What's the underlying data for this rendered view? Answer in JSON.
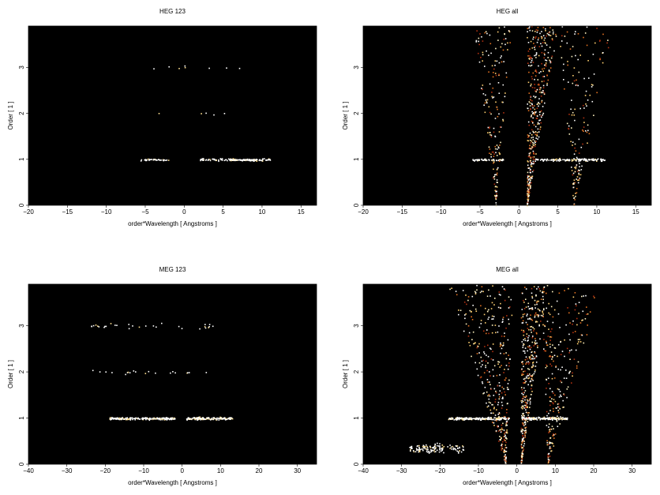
{
  "chart_data": [
    {
      "type": "heatmap",
      "title": "HEG 123",
      "xlabel": "order*Wavelength [ Angstroms ]",
      "ylabel": "Order [ 1 ]",
      "xlim": [
        -20,
        17
      ],
      "ylim": [
        0,
        3.9
      ],
      "xticks": [
        -20,
        -15,
        -10,
        -5,
        0,
        5,
        10,
        15
      ],
      "yticks": [
        0,
        1,
        2,
        3
      ],
      "background": "#000000",
      "clusters": [
        {
          "x": [
            -6,
            -2
          ],
          "y": 1,
          "spread": 0.03,
          "n": 40
        },
        {
          "x": [
            2,
            11
          ],
          "y": 1,
          "spread": 0.04,
          "n": 110
        },
        {
          "x": [
            6,
            9
          ],
          "y": 1,
          "spread": 0.02,
          "n": 60
        },
        {
          "x": [
            -4,
            10
          ],
          "y": 3.0,
          "spread": 0.05,
          "n": 8
        },
        {
          "x": [
            -4,
            10
          ],
          "y": 2.0,
          "spread": 0.04,
          "n": 5
        }
      ]
    },
    {
      "type": "heatmap",
      "title": "HEG all",
      "xlabel": "order*Wavelength [ Angstroms ]",
      "ylabel": "Order [ 1 ]",
      "xlim": [
        -20,
        17
      ],
      "ylim": [
        0,
        3.9
      ],
      "xticks": [
        -20,
        -15,
        -10,
        -5,
        0,
        5,
        10,
        15
      ],
      "yticks": [
        0,
        1,
        2,
        3
      ],
      "background": "#000000",
      "clusters": [
        {
          "x": [
            -6,
            -2
          ],
          "y": 1,
          "spread": 0.03,
          "n": 50
        },
        {
          "x": [
            2,
            11
          ],
          "y": 1,
          "spread": 0.04,
          "n": 130
        },
        {
          "wedge": true,
          "apex": 1,
          "left": 1,
          "right": 5,
          "n": 420
        },
        {
          "wedge": true,
          "apex": -3,
          "left": -6,
          "right": -1,
          "n": 180
        },
        {
          "wedge": true,
          "apex": 7,
          "left": 5,
          "right": 12,
          "n": 160
        }
      ]
    },
    {
      "type": "heatmap",
      "title": "MEG 123",
      "xlabel": "order*Wavelength [ Angstroms ]",
      "ylabel": "Order [ 1 ]",
      "xlim": [
        -40,
        35
      ],
      "ylim": [
        0,
        3.9
      ],
      "xticks": [
        -40,
        -30,
        -20,
        -10,
        0,
        10,
        20,
        30
      ],
      "yticks": [
        0,
        1,
        2,
        3
      ],
      "background": "#000000",
      "clusters": [
        {
          "x": [
            -19,
            -2
          ],
          "y": 1,
          "spread": 0.04,
          "n": 200
        },
        {
          "x": [
            1,
            13
          ],
          "y": 1,
          "spread": 0.04,
          "n": 150
        },
        {
          "x": [
            -24,
            8
          ],
          "y": 3.0,
          "spread": 0.08,
          "n": 30
        },
        {
          "x": [
            -24,
            7
          ],
          "y": 2.0,
          "spread": 0.06,
          "n": 20
        }
      ]
    },
    {
      "type": "heatmap",
      "title": "MEG all",
      "xlabel": "order*Wavelength [ Angstroms ]",
      "ylabel": "Order [ 1 ]",
      "xlim": [
        -40,
        35
      ],
      "ylim": [
        0,
        3.9
      ],
      "xticks": [
        -40,
        -30,
        -20,
        -10,
        0,
        10,
        20,
        30
      ],
      "yticks": [
        0,
        1,
        2,
        3
      ],
      "background": "#000000",
      "clusters": [
        {
          "x": [
            -18,
            -2
          ],
          "y": 1,
          "spread": 0.04,
          "n": 220
        },
        {
          "x": [
            1,
            13
          ],
          "y": 1,
          "spread": 0.04,
          "n": 170
        },
        {
          "x": [
            -28,
            -14
          ],
          "y": 0.35,
          "spread": 0.15,
          "n": 120
        },
        {
          "wedge": true,
          "apex": 1,
          "left": 1,
          "right": 8,
          "n": 380
        },
        {
          "wedge": true,
          "apex": -3,
          "left": -18,
          "right": -1,
          "n": 350
        },
        {
          "wedge": true,
          "apex": 8,
          "left": 6,
          "right": 22,
          "n": 250
        }
      ]
    }
  ]
}
